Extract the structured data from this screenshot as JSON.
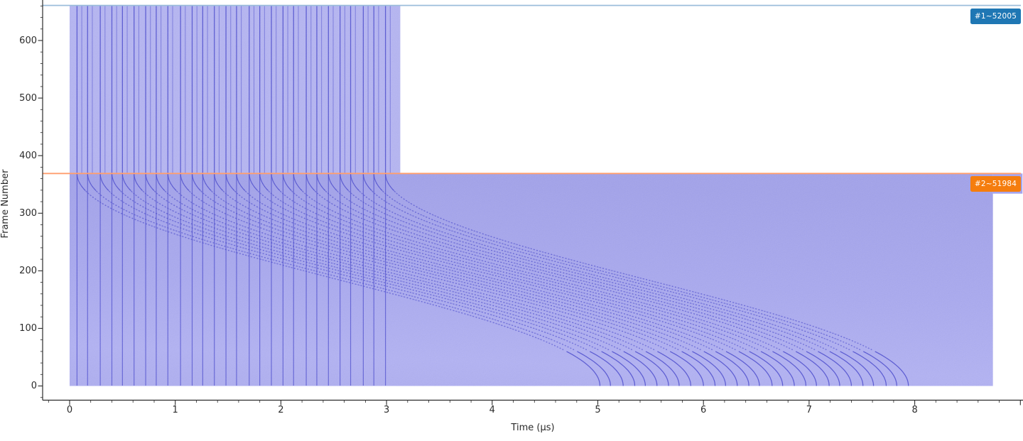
{
  "chart_data": {
    "type": "heatmap",
    "title": "",
    "xlabel": "Time (µs)",
    "ylabel": "Frame Number",
    "xlim": [
      -0.26,
      9.03
    ],
    "ylim": [
      -26,
      670
    ],
    "x_ticks": [
      0,
      1,
      2,
      3,
      4,
      5,
      6,
      7,
      8
    ],
    "x_minor_step_us": 0.2,
    "y_ticks": [
      0,
      100,
      200,
      300,
      400,
      500,
      600
    ],
    "y_minor_step_frames": 20,
    "grid": false,
    "legend_position": "none",
    "markers": [
      {
        "id": "marker-1",
        "label": "#1~52005",
        "frame": 661,
        "line_color": "#9cbedb",
        "badge_color": "#1f77b4",
        "text_color": "#ffffff"
      },
      {
        "id": "marker-2",
        "label": "#2~51984",
        "frame": 369,
        "line_color": "#ff9e6e",
        "badge_color": "#f57d0e",
        "text_color": "#ffffff"
      }
    ],
    "regions": [
      {
        "name": "capture-1-band",
        "t_start_us": 0,
        "t_end_us": 3.13,
        "frame_min": 369,
        "frame_max": 661,
        "fill": "#b5b5f3"
      },
      {
        "name": "capture-2-band",
        "t_start_us": 0,
        "t_end_us": 8.74,
        "frame_min": 0,
        "frame_max": 369,
        "fill_top": "#a2a2eb",
        "fill_mid": "#a9a9f0",
        "fill_bottom": "#b2b2f4"
      },
      {
        "name": "capture-2-band-right-step",
        "t_start_us": 8.74,
        "t_end_us": 9.02,
        "frame_min": 334,
        "frame_max": 369,
        "fill": "#a5a5ee"
      }
    ],
    "traces": {
      "comment_visible_structure": "vertical chirp traces 0-3us over both bands; below marker-2 each trace also curves right as a dotted arc, returning to vertical ~4.95us later, ending 5-8us at frame 0",
      "start_times_us": [
        0.07,
        0.17,
        0.29,
        0.4,
        0.5,
        0.61,
        0.72,
        0.82,
        0.93,
        1.05,
        1.16,
        1.26,
        1.37,
        1.48,
        1.58,
        1.7,
        1.8,
        1.91,
        2.02,
        2.12,
        2.24,
        2.34,
        2.45,
        2.56,
        2.66,
        2.78,
        2.88,
        2.99
      ],
      "upper_pair_echo_offset_us": 0.045,
      "curve_shift_us": 4.95,
      "curve_top_frame": 369,
      "curve_bottom_frame": 0,
      "color": "#4040cc"
    },
    "axis_color": "#2b2b2b"
  }
}
